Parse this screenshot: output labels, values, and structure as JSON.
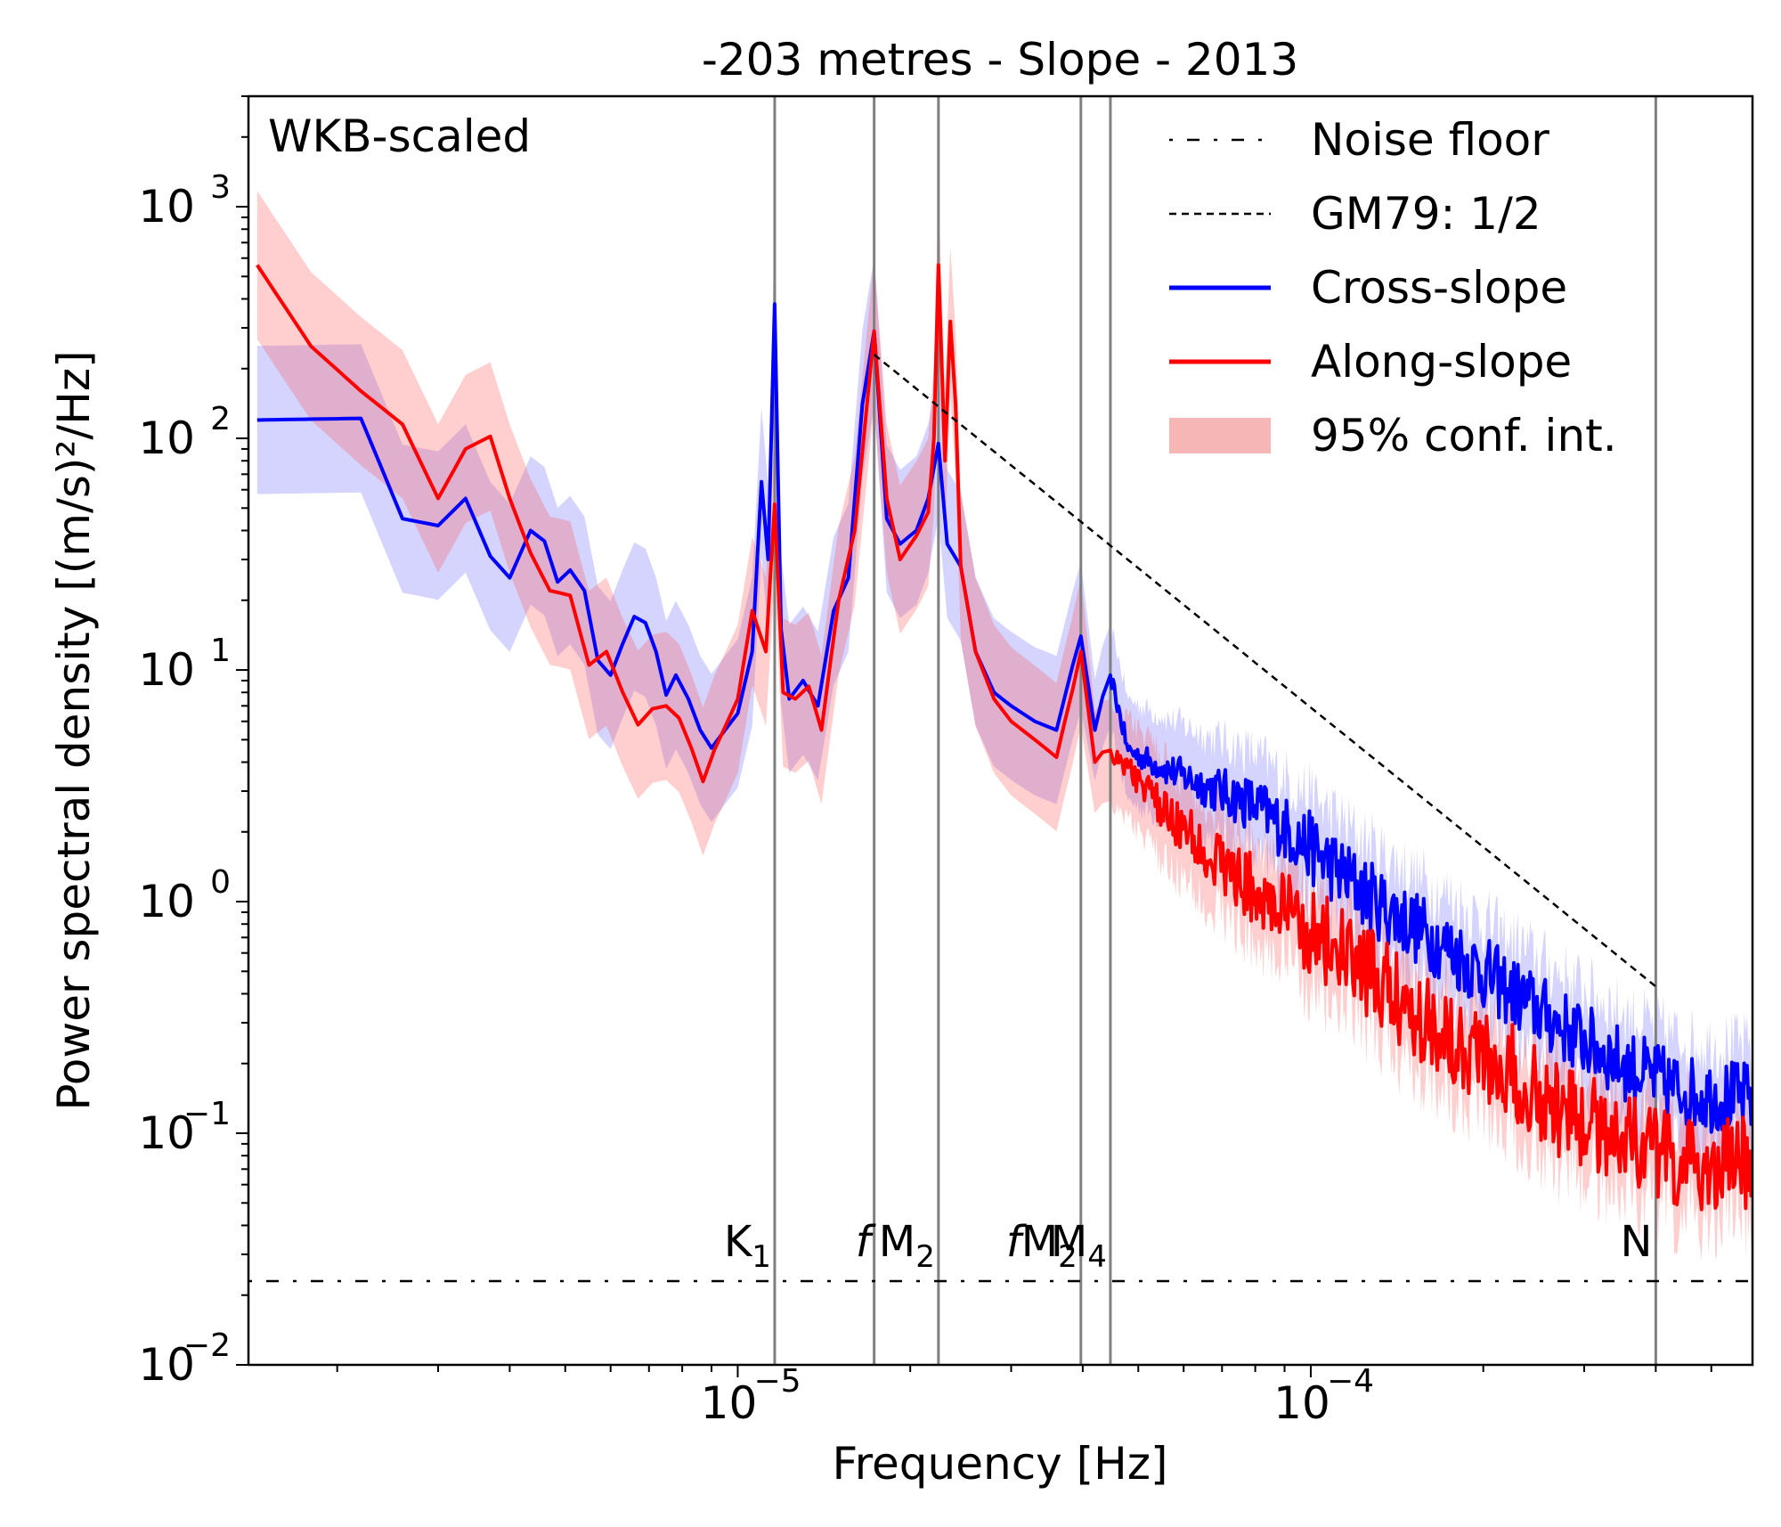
{
  "chart_data": {
    "type": "line",
    "title": "-203 metres - Slope - 2013",
    "xlabel": "Frequency [Hz]",
    "ylabel": "Power spectral density [(m/s)²/Hz]",
    "xscale": "log",
    "yscale": "log",
    "xlim": [
      1.4e-06,
      0.00059
    ],
    "ylim": [
      0.01,
      3000
    ],
    "x_ticks": [
      {
        "value": 1e-05,
        "mantissa": "10",
        "exponent": "−5"
      },
      {
        "value": 0.0001,
        "mantissa": "10",
        "exponent": "−4"
      }
    ],
    "y_ticks": [
      {
        "value": 0.01,
        "mantissa": "10",
        "exponent": "−2"
      },
      {
        "value": 0.1,
        "mantissa": "10",
        "exponent": "−1"
      },
      {
        "value": 1,
        "mantissa": "10",
        "exponent": "0"
      },
      {
        "value": 10,
        "mantissa": "10",
        "exponent": "1"
      },
      {
        "value": 100,
        "mantissa": "10",
        "exponent": "2"
      },
      {
        "value": 1000,
        "mantissa": "10",
        "exponent": "3"
      }
    ],
    "annotation": "WKB-scaled",
    "grid": false,
    "legend_position": "top-right",
    "legend": [
      {
        "label": "Noise floor",
        "style": "dashdot",
        "color": "#000000"
      },
      {
        "label": "GM79: 1/2",
        "style": "dashed",
        "color": "#000000"
      },
      {
        "label": "Cross-slope",
        "style": "solid",
        "color": "#0000ff"
      },
      {
        "label": "Along-slope",
        "style": "solid",
        "color": "#ff0000"
      },
      {
        "label": "95% conf. int.",
        "style": "band",
        "color": "#f7b6b6"
      }
    ],
    "vertical_lines": [
      {
        "name": "K1",
        "label": "K",
        "sub": "1",
        "italic": false,
        "x": 1.16e-05
      },
      {
        "name": "f",
        "label": "f",
        "sub": "",
        "italic": true,
        "x": 1.73e-05
      },
      {
        "name": "M2",
        "label": "M",
        "sub": "2",
        "italic": false,
        "x": 2.24e-05
      },
      {
        "name": "fM2",
        "label": "f",
        "label2": "M",
        "sub": "2",
        "italic": true,
        "x": 3.97e-05
      },
      {
        "name": "M4",
        "label": "M",
        "sub": "4",
        "italic": false,
        "x": 4.47e-05
      },
      {
        "name": "N",
        "label": "N",
        "sub": "",
        "italic": false,
        "x": 0.0004
      }
    ],
    "noise_floor": 0.023,
    "gm79": {
      "x_start": 1.73e-05,
      "x_end": 0.0004,
      "y_start": 230,
      "slope": -2
    },
    "series": [
      {
        "name": "Cross-slope",
        "color": "#0000ff",
        "x": [
          1.45e-06,
          2.2e-06,
          2.6e-06,
          3e-06,
          3.35e-06,
          3.7e-06,
          4e-06,
          4.35e-06,
          4.6e-06,
          4.85e-06,
          5.1e-06,
          5.4e-06,
          5.7e-06,
          6e-06,
          6.3e-06,
          6.6e-06,
          6.9e-06,
          7.2e-06,
          7.5e-06,
          7.8e-06,
          8.2e-06,
          8.6e-06,
          9e-06,
          9.5e-06,
          1e-05,
          1.06e-05,
          1.1e-05,
          1.13e-05,
          1.16e-05,
          1.19e-05,
          1.23e-05,
          1.3e-05,
          1.38e-05,
          1.47e-05,
          1.56e-05,
          1.65e-05,
          1.73e-05,
          1.82e-05,
          1.92e-05,
          2.05e-05,
          2.15e-05,
          2.24e-05,
          2.32e-05,
          2.45e-05,
          2.6e-05,
          2.8e-05,
          3e-05,
          3.3e-05,
          3.6e-05,
          3.97e-05,
          4.2e-05,
          4.47e-05,
          4.8e-05,
          5.5e-05,
          6.5e-05,
          8e-05,
          0.0001,
          0.00013,
          0.00017,
          0.00022,
          0.00028,
          0.00035,
          0.00045,
          0.00059
        ],
        "y": [
          120,
          122,
          45,
          42,
          55,
          31,
          25,
          40,
          36,
          24,
          27,
          22,
          11,
          9.5,
          13,
          17,
          16,
          12,
          7.8,
          9.5,
          7.5,
          5.5,
          4.6,
          5.5,
          6.5,
          12,
          65,
          30,
          380,
          15,
          7.5,
          9.0,
          7.0,
          18,
          25,
          140,
          290,
          45,
          35,
          40,
          55,
          95,
          35,
          28,
          12,
          8.0,
          7.0,
          6.0,
          5.5,
          14,
          5.5,
          9.5,
          4.5,
          3.8,
          3.2,
          2.6,
          1.7,
          1.0,
          0.65,
          0.42,
          0.28,
          0.2,
          0.15,
          0.14
        ]
      },
      {
        "name": "Along-slope",
        "color": "#ff0000",
        "x": [
          1.45e-06,
          1.8e-06,
          2.2e-06,
          2.6e-06,
          3e-06,
          3.35e-06,
          3.7e-06,
          4e-06,
          4.35e-06,
          4.7e-06,
          5.1e-06,
          5.5e-06,
          5.9e-06,
          6.3e-06,
          6.7e-06,
          7.1e-06,
          7.5e-06,
          7.9e-06,
          8.3e-06,
          8.7e-06,
          9.1e-06,
          9.6e-06,
          1e-05,
          1.06e-05,
          1.12e-05,
          1.16e-05,
          1.2e-05,
          1.26e-05,
          1.33e-05,
          1.4e-05,
          1.5e-05,
          1.6e-05,
          1.73e-05,
          1.82e-05,
          1.92e-05,
          2.05e-05,
          2.15e-05,
          2.2e-05,
          2.24e-05,
          2.3e-05,
          2.35e-05,
          2.4e-05,
          2.45e-05,
          2.6e-05,
          2.8e-05,
          3e-05,
          3.3e-05,
          3.6e-05,
          3.97e-05,
          4.2e-05,
          4.47e-05,
          4.8e-05,
          5.5e-05,
          6.5e-05,
          8e-05,
          0.0001,
          0.00013,
          0.00017,
          0.00022,
          0.00028,
          0.00035,
          0.00045,
          0.00059
        ],
        "y": [
          560,
          250,
          160,
          115,
          55,
          90,
          102,
          55,
          32,
          22,
          21,
          10.5,
          12,
          8.0,
          5.8,
          6.8,
          7.0,
          6.2,
          4.6,
          3.3,
          4.5,
          6.0,
          7.5,
          18,
          12,
          52,
          8.0,
          7.5,
          8.5,
          5.5,
          20,
          40,
          290,
          55,
          30,
          38,
          48,
          100,
          560,
          80,
          320,
          140,
          28,
          12,
          7.5,
          6.0,
          5.0,
          4.2,
          12,
          4.0,
          4.5,
          3.8,
          2.5,
          1.7,
          1.1,
          0.75,
          0.45,
          0.28,
          0.19,
          0.12,
          0.1,
          0.07,
          0.075
        ]
      }
    ]
  }
}
